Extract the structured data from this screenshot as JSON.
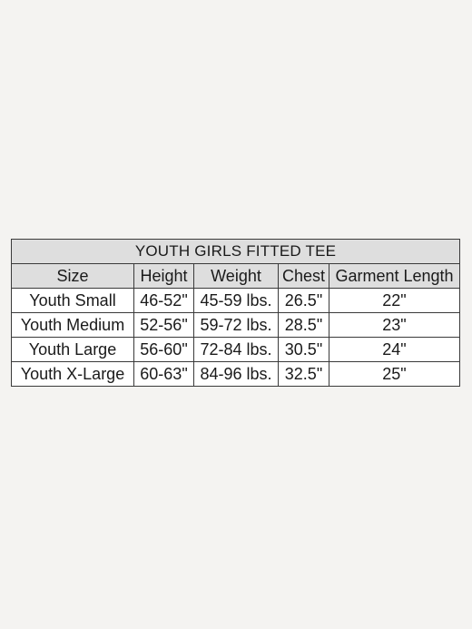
{
  "table": {
    "title": "YOUTH GIRLS FITTED TEE",
    "headers": {
      "size": "Size",
      "height": "Height",
      "weight": "Weight",
      "chest": "Chest",
      "garment_length": "Garment Length"
    },
    "rows": [
      {
        "size": "Youth Small",
        "height": "46-52\"",
        "weight": "45-59 lbs.",
        "chest": "26.5\"",
        "garment_length": "22\""
      },
      {
        "size": "Youth Medium",
        "height": "52-56\"",
        "weight": "59-72 lbs.",
        "chest": "28.5\"",
        "garment_length": "23\""
      },
      {
        "size": "Youth Large",
        "height": "56-60\"",
        "weight": "72-84 lbs.",
        "chest": "30.5\"",
        "garment_length": "24\""
      },
      {
        "size": "Youth X-Large",
        "height": "60-63\"",
        "weight": "84-96 lbs.",
        "chest": "32.5\"",
        "garment_length": "25\""
      }
    ]
  }
}
